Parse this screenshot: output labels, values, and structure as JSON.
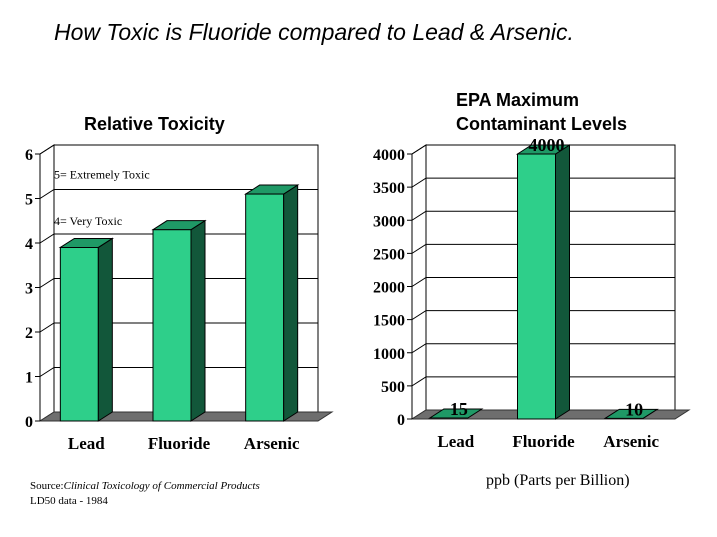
{
  "page": {
    "title": "How Toxic is Fluoride compared to Lead & Arsenic.",
    "unit_note": "ppb (Parts per Billion)",
    "source_prefix": "Source:",
    "source_italic": "Clinical Toxicology of Commercial Products",
    "source_suffix": " LD50 data - 1984"
  },
  "colors": {
    "bar_front": "#2ecf8a",
    "bar_side": "#12573a",
    "bar_top": "#1f9966",
    "floor": "#6e6e6e",
    "grid": "#000000"
  },
  "chart_data": [
    {
      "type": "bar",
      "title": "Relative Toxicity",
      "categories": [
        "Lead",
        "Fluoride",
        "Arsenic"
      ],
      "values": [
        3.9,
        4.3,
        5.1
      ],
      "ylim": [
        0,
        6
      ],
      "yticks": [
        "0",
        "1",
        "2",
        "3",
        "4",
        "5",
        "6"
      ],
      "grid": true,
      "annotations": [
        "5= Extremely Toxic",
        "4= Very Toxic"
      ],
      "value_labels": []
    },
    {
      "type": "bar",
      "title": "EPA Maximum Contaminant Levels",
      "categories": [
        "Lead",
        "Fluoride",
        "Arsenic"
      ],
      "values": [
        15,
        4000,
        10
      ],
      "ylim": [
        0,
        4000
      ],
      "yticks": [
        "0",
        "500",
        "1000",
        "1500",
        "2000",
        "2500",
        "3000",
        "3500",
        "4000"
      ],
      "grid": true,
      "annotations": [],
      "value_labels": [
        "15",
        "4000",
        "10"
      ]
    }
  ]
}
